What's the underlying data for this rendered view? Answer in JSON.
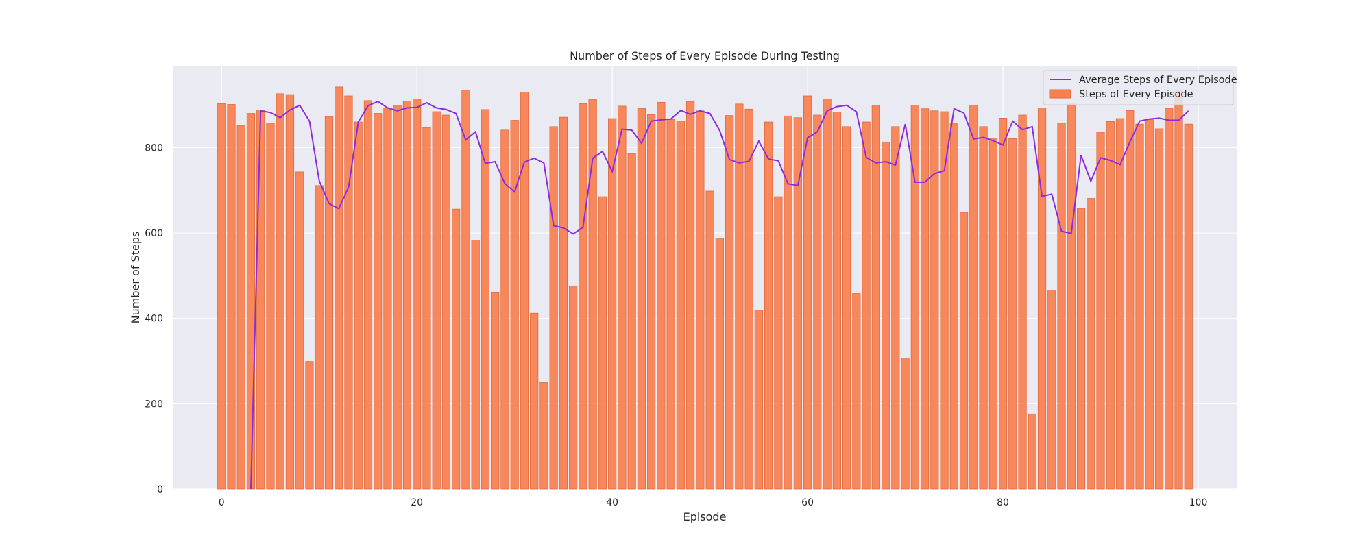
{
  "chart_data": {
    "type": "bar",
    "title": "Number of Steps of Every Episode During Testing",
    "xlabel": "Episode",
    "ylabel": "Number of Steps",
    "xlim": [
      -5,
      104
    ],
    "ylim": [
      0,
      990
    ],
    "xticks": [
      0,
      20,
      40,
      60,
      80,
      100
    ],
    "yticks": [
      0,
      200,
      400,
      600,
      800
    ],
    "grid": true,
    "legend_position": "top-right",
    "x": [
      0,
      1,
      2,
      3,
      4,
      5,
      6,
      7,
      8,
      9,
      10,
      11,
      12,
      13,
      14,
      15,
      16,
      17,
      18,
      19,
      20,
      21,
      22,
      23,
      24,
      25,
      26,
      27,
      28,
      29,
      30,
      31,
      32,
      33,
      34,
      35,
      36,
      37,
      38,
      39,
      40,
      41,
      42,
      43,
      44,
      45,
      46,
      47,
      48,
      49,
      50,
      51,
      52,
      53,
      54,
      55,
      56,
      57,
      58,
      59,
      60,
      61,
      62,
      63,
      64,
      65,
      66,
      67,
      68,
      69,
      70,
      71,
      72,
      73,
      74,
      75,
      76,
      77,
      78,
      79,
      80,
      81,
      82,
      83,
      84,
      85,
      86,
      87,
      88,
      89,
      90,
      91,
      92,
      93,
      94,
      95,
      96,
      97,
      98,
      99
    ],
    "series": [
      {
        "name": "Steps of Every Episode",
        "kind": "bar",
        "color": "#f87f4f",
        "values": [
          903,
          901,
          852,
          880,
          888,
          857,
          926,
          924,
          743,
          299,
          711,
          873,
          942,
          921,
          860,
          910,
          880,
          893,
          899,
          909,
          914,
          847,
          884,
          876,
          656,
          934,
          583,
          889,
          460,
          841,
          864,
          930,
          412,
          250,
          849,
          871,
          476,
          903,
          913,
          685,
          868,
          897,
          786,
          892,
          877,
          906,
          866,
          862,
          908,
          886,
          698,
          588,
          875,
          902,
          890,
          419,
          860,
          685,
          874,
          870,
          921,
          876,
          914,
          883,
          849,
          458,
          860,
          899,
          813,
          849,
          307,
          899,
          891,
          886,
          884,
          857,
          648,
          899,
          849,
          822,
          869,
          821,
          876,
          176,
          893,
          466,
          857,
          902,
          658,
          681,
          836,
          861,
          868,
          887,
          855,
          867,
          844,
          892,
          933,
          855
        ]
      },
      {
        "name": "Average Steps of Every Episode",
        "kind": "line",
        "color": "#8a2be2",
        "values": [
          null,
          null,
          null,
          0,
          886,
          882,
          870,
          888,
          899,
          862,
          722,
          669,
          657,
          707,
          860,
          898,
          908,
          893,
          886,
          893,
          894,
          905,
          893,
          889,
          880,
          818,
          837,
          763,
          767,
          716,
          696,
          766,
          775,
          764,
          617,
          612,
          598,
          613,
          775,
          791,
          744,
          843,
          841,
          810,
          862,
          865,
          867,
          887,
          878,
          886,
          880,
          840,
          772,
          764,
          768,
          815,
          773,
          769,
          715,
          711,
          823,
          837,
          886,
          896,
          899,
          884,
          777,
          764,
          767,
          759,
          855,
          719,
          719,
          739,
          746,
          891,
          881,
          820,
          824,
          816,
          806,
          862,
          842,
          849,
          686,
          691,
          604,
          599,
          782,
          721,
          776,
          770,
          760,
          813,
          862,
          867,
          869,
          864,
          864,
          886
        ]
      }
    ]
  }
}
